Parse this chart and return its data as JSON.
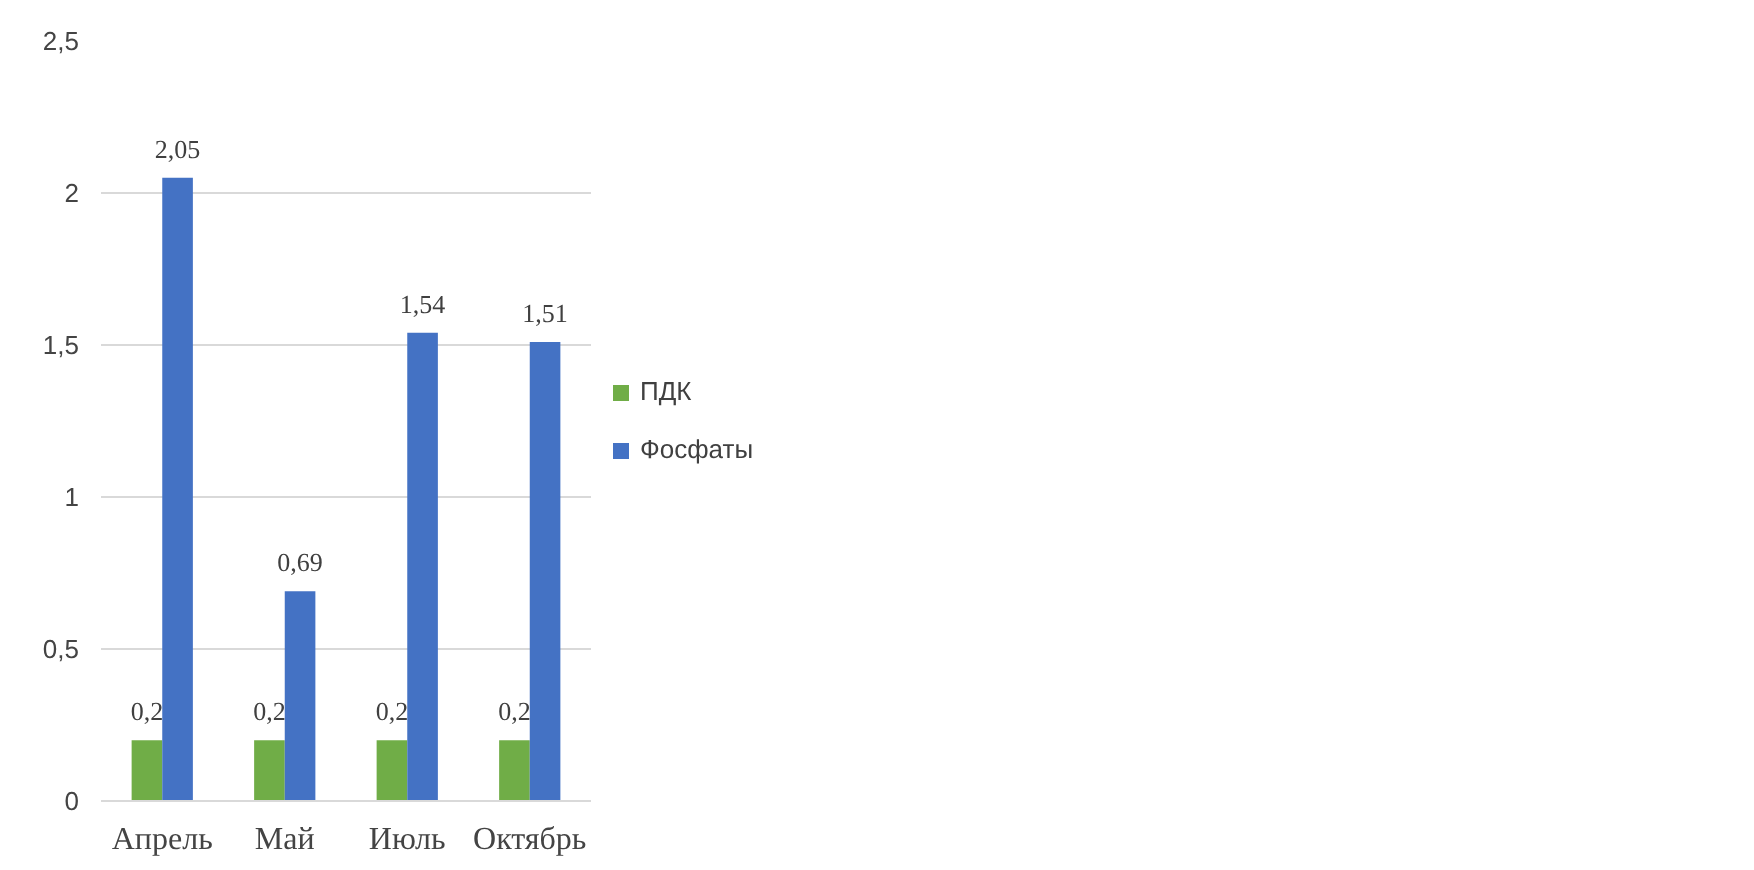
{
  "chart_data": {
    "type": "bar",
    "categories": [
      "Апрель",
      "Май",
      "Июль",
      "Октябрь"
    ],
    "series": [
      {
        "name": "ПДК",
        "color": "#70ad47",
        "values": [
          0.2,
          0.2,
          0.2,
          0.2
        ],
        "value_labels": [
          "0,2",
          "0,2",
          "0,2",
          "0,2"
        ]
      },
      {
        "name": "Фосфаты",
        "color": "#4472c4",
        "values": [
          2.05,
          0.69,
          1.54,
          1.51
        ],
        "value_labels": [
          "2,05",
          "0,69",
          "1,54",
          "1,51"
        ]
      }
    ],
    "ylim": [
      0,
      2.5
    ],
    "yticks": [
      0,
      {
        "value": 0.5,
        "label": "0,5"
      },
      1,
      {
        "value": 1.5,
        "label": "1,5"
      },
      2,
      {
        "value": 2.5,
        "label": "2,5"
      }
    ],
    "grid": "y",
    "legend": "right"
  }
}
